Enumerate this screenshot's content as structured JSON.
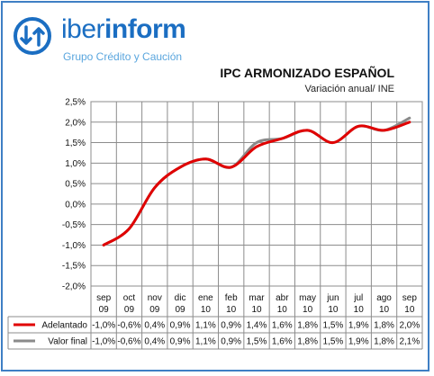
{
  "brand": {
    "name_light": "iber",
    "name_bold": "inform",
    "tagline": "Grupo Crédito y Caución"
  },
  "colors": {
    "frame": "#3f7fc4",
    "brand": "#1b6ec2",
    "adelantado": "#e00000",
    "valor_final": "#8a8a8a"
  },
  "chart_data": {
    "type": "line",
    "title": "IPC ARMONIZADO ESPAÑOL",
    "subtitle": "Variación anual/ INE",
    "categories": [
      [
        "sep",
        "09"
      ],
      [
        "oct",
        "09"
      ],
      [
        "nov",
        "09"
      ],
      [
        "dic",
        "09"
      ],
      [
        "ene",
        "10"
      ],
      [
        "feb",
        "10"
      ],
      [
        "mar",
        "10"
      ],
      [
        "abr",
        "10"
      ],
      [
        "may",
        "10"
      ],
      [
        "jun",
        "10"
      ],
      [
        "jul",
        "10"
      ],
      [
        "ago",
        "10"
      ],
      [
        "sep",
        "10"
      ]
    ],
    "y_ticks": [
      "2,5%",
      "2,0%",
      "1,5%",
      "1,0%",
      "0,5%",
      "0,0%",
      "-0,5%",
      "-1,0%",
      "-1,5%",
      "-2,0%"
    ],
    "ylim": [
      -2.0,
      2.5
    ],
    "grid": true,
    "series": [
      {
        "name": "Adelantado",
        "color": "#e00000",
        "values": [
          -1.0,
          -0.6,
          0.4,
          0.9,
          1.1,
          0.9,
          1.4,
          1.6,
          1.8,
          1.5,
          1.9,
          1.8,
          2.0
        ],
        "labels": [
          "-1,0%",
          "-0,6%",
          "0,4%",
          "0,9%",
          "1,1%",
          "0,9%",
          "1,4%",
          "1,6%",
          "1,8%",
          "1,5%",
          "1,9%",
          "1,8%",
          "2,0%"
        ]
      },
      {
        "name": "Valor final",
        "color": "#8a8a8a",
        "values": [
          -1.0,
          -0.6,
          0.4,
          0.9,
          1.1,
          0.9,
          1.5,
          1.6,
          1.8,
          1.5,
          1.9,
          1.8,
          2.1
        ],
        "labels": [
          "-1,0%",
          "-0,6%",
          "0,4%",
          "0,9%",
          "1,1%",
          "0,9%",
          "1,5%",
          "1,6%",
          "1,8%",
          "1,5%",
          "1,9%",
          "1,8%",
          "2,1%"
        ]
      }
    ]
  }
}
